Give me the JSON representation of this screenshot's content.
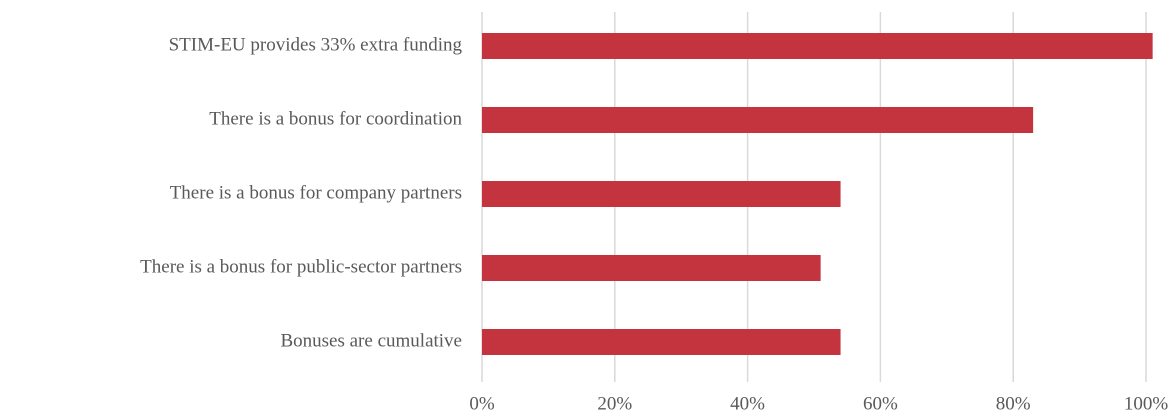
{
  "chart_data": {
    "type": "bar",
    "orientation": "horizontal",
    "categories": [
      "STIM-EU provides 33% extra funding",
      "There is a bonus for coordination",
      "There is a bonus for company partners",
      "There is a bonus for public-sector partners",
      "Bonuses are cumulative"
    ],
    "values": [
      101,
      83,
      54,
      51,
      54
    ],
    "color": "#c4343f",
    "xlim": [
      0,
      100
    ],
    "xticks": [
      {
        "value": 0,
        "label": "0%"
      },
      {
        "value": 20,
        "label": "20%"
      },
      {
        "value": 40,
        "label": "40%"
      },
      {
        "value": 60,
        "label": "60%"
      },
      {
        "value": 80,
        "label": "80%"
      },
      {
        "value": 100,
        "label": "100%"
      }
    ],
    "grid": true
  }
}
